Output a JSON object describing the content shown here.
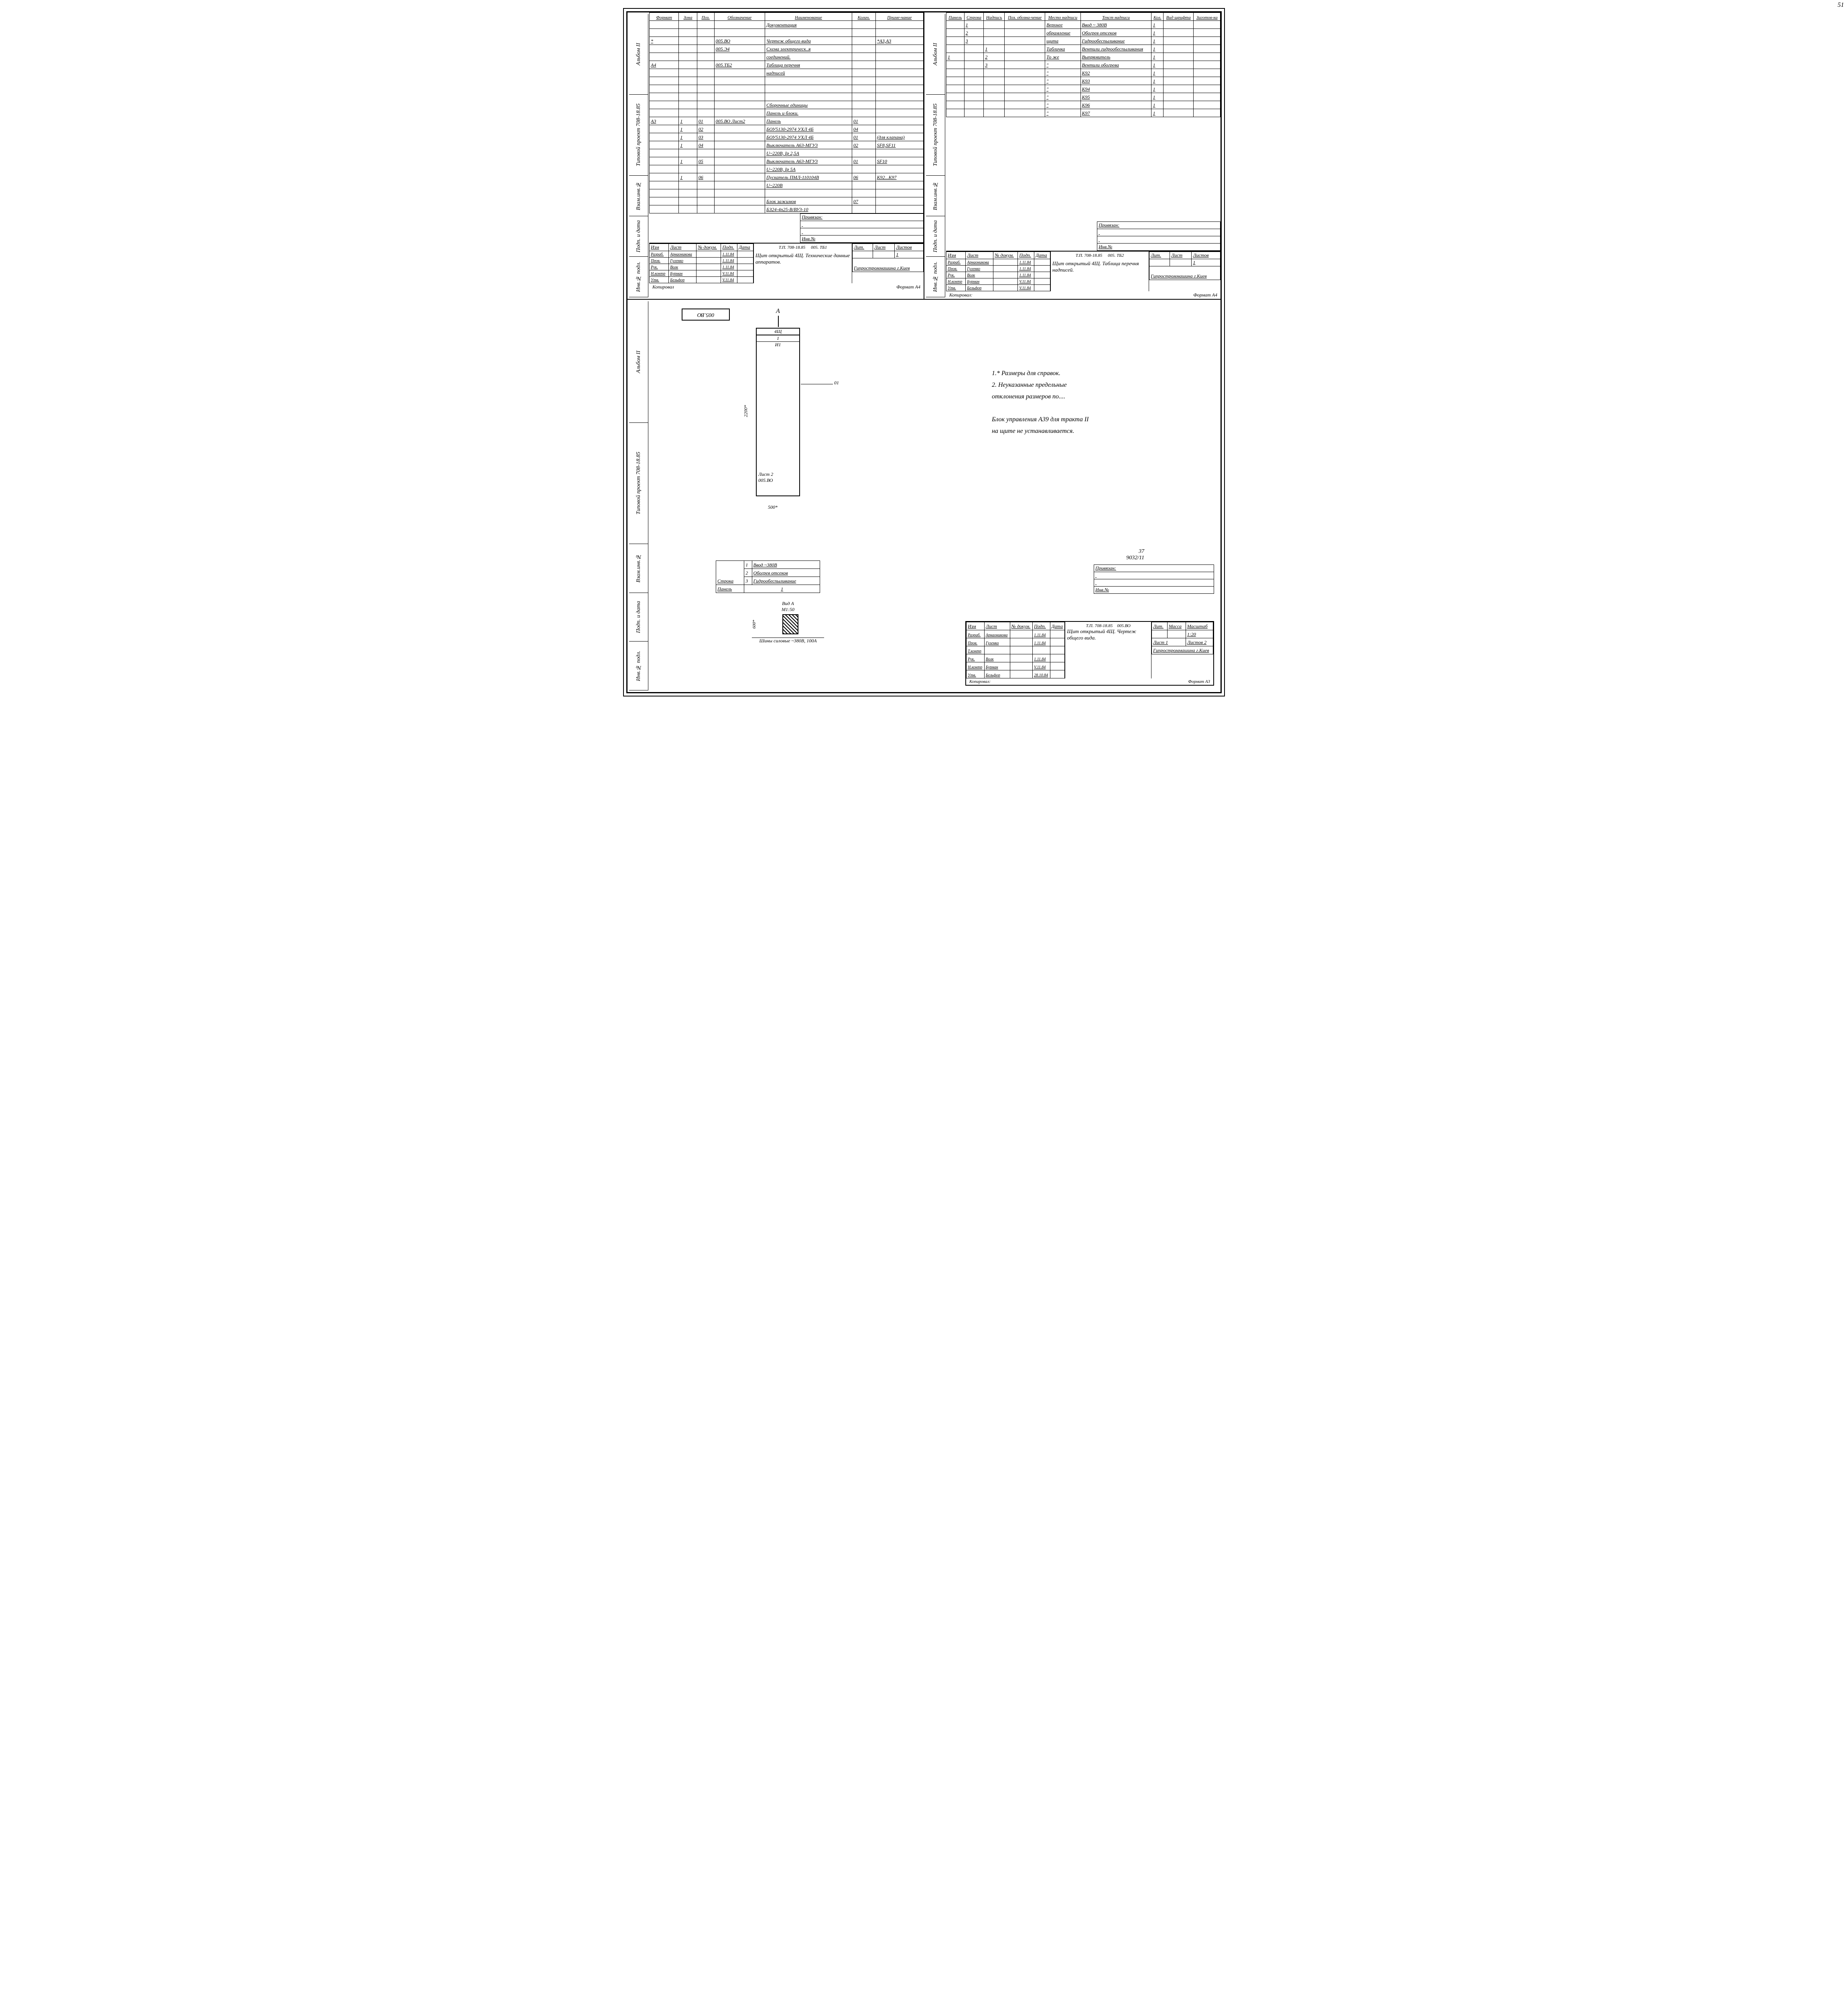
{
  "page_number": "51",
  "side": {
    "album": "Альбом II",
    "project": "Типовой проект 708-18.85",
    "strip": [
      "Инв.№ подл.",
      "Подп. и дата",
      "Взам.инв.№"
    ]
  },
  "table1": {
    "headers": [
      "Формат",
      "Зона",
      "Поз.",
      "Обозначение",
      "Наименование",
      "Колич.",
      "Приме-чание"
    ],
    "rows": [
      [
        "",
        "",
        "",
        "",
        "Документация",
        "",
        ""
      ],
      [
        "",
        "",
        "",
        "",
        "",
        "",
        ""
      ],
      [
        "*",
        "",
        "",
        "005.ВО",
        "Чертеж общего вида",
        "",
        "*А3,А3"
      ],
      [
        "",
        "",
        "",
        "005.Э4",
        "Схема электрическ..я",
        "",
        ""
      ],
      [
        "",
        "",
        "",
        "",
        "соединений.",
        "",
        ""
      ],
      [
        "А4",
        "",
        "",
        "005.ТБ2",
        "Таблица перечня",
        "",
        ""
      ],
      [
        "",
        "",
        "",
        "",
        "надписей",
        "",
        ""
      ],
      [
        "",
        "",
        "",
        "",
        "",
        "",
        ""
      ],
      [
        "",
        "",
        "",
        "",
        "",
        "",
        ""
      ],
      [
        "",
        "",
        "",
        "",
        "",
        "",
        ""
      ],
      [
        "",
        "",
        "",
        "",
        "Сборочные единицы",
        "",
        ""
      ],
      [
        "",
        "",
        "",
        "",
        "Панель и блоки.",
        "",
        ""
      ],
      [
        "А3",
        "1",
        "01",
        "005.ВО Лист2",
        "Панель",
        "01",
        ""
      ],
      [
        "",
        "1",
        "02",
        "",
        "БОУ5130-2974 УХЛ 4Б",
        "04",
        ""
      ],
      [
        "",
        "1",
        "03",
        "",
        "БОУ5130-2974 УХЛ 4Б",
        "01",
        "(для клапана)"
      ],
      [
        "",
        "1",
        "04",
        "",
        "Выключатель А63-МГУ3",
        "02",
        "SF8,SF11"
      ],
      [
        "",
        "",
        "",
        "",
        "U~220В, Iр 2,5А",
        "",
        ""
      ],
      [
        "",
        "1",
        "05",
        "",
        "Выключатель А63-МГУ3",
        "01",
        "SF10"
      ],
      [
        "",
        "",
        "",
        "",
        "U~220В, Iр 5А",
        "",
        ""
      ],
      [
        "",
        "1",
        "06",
        "",
        "Пускатель ПМЛ-110104В",
        "06",
        "К92...К97"
      ],
      [
        "",
        "",
        "",
        "",
        "U~220В",
        "",
        ""
      ],
      [
        "",
        "",
        "",
        "",
        "",
        "",
        ""
      ],
      [
        "",
        "",
        "",
        "",
        "Блок зажимов",
        "07",
        ""
      ],
      [
        "",
        "",
        "",
        "",
        "БЗ24-4п25-В/ВУ3-10",
        "",
        ""
      ]
    ]
  },
  "priv_label": "Привязан:",
  "inv_label": "Инв.№",
  "tb1": {
    "proj": "Т.П. 708-18.85",
    "code": "005. ТБ1",
    "title": "Щит открытый 4Щ. Технические данные аппаратов.",
    "org": "Гипростроммашина г.Киев",
    "roles": [
      [
        "Разраб.",
        "Арнаоникова",
        "",
        "1.11.84"
      ],
      [
        "Пров.",
        "Гуленко",
        "",
        "1.11.84"
      ],
      [
        "Рук.",
        "Волк",
        "",
        "1.11.84"
      ],
      [
        "Н.контр",
        "Бурман",
        "",
        "V.11.84"
      ],
      [
        "Утв.",
        "Бельфор",
        "",
        "V.11.84"
      ]
    ],
    "lit": "Лит.",
    "list": "Лист",
    "listov": "Листов",
    "listov_v": "1",
    "footer_l": "Копировал",
    "footer_r": "Формат А4",
    "hdr": [
      "Изм",
      "Лист",
      "№ докум.",
      "Подп.",
      "Дата"
    ]
  },
  "table2": {
    "headers": [
      "Панель",
      "Строка",
      "Надпись",
      "Поз. обозна-чение",
      "Место надписи",
      "Текст надписи",
      "Кол.",
      "Вид шрифта",
      "Заготов-ка"
    ],
    "rows": [
      [
        "",
        "1",
        "",
        "",
        "Верхнее",
        "Ввод ~ 380В",
        "1",
        "",
        ""
      ],
      [
        "",
        "2",
        "",
        "",
        "обрамление",
        "Обогрев отсеков",
        "1",
        "",
        ""
      ],
      [
        "",
        "3",
        "",
        "",
        "щита",
        "Гидрообеспыливание",
        "1",
        "",
        ""
      ],
      [
        "",
        "",
        "1",
        "",
        "Табличка",
        "Вентили гидрообеспыливания",
        "1",
        "",
        ""
      ],
      [
        "1",
        "",
        "2",
        "",
        "То же",
        "Выпрямитель",
        "1",
        "",
        ""
      ],
      [
        "",
        "",
        "3",
        "",
        "\"",
        "Вентили обогрева",
        "1",
        "",
        ""
      ],
      [
        "",
        "",
        "",
        "",
        "\"",
        "К92",
        "1",
        "",
        ""
      ],
      [
        "",
        "",
        "",
        "",
        "\"",
        "К93",
        "1",
        "",
        ""
      ],
      [
        "",
        "",
        "",
        "",
        "\"",
        "К94",
        "1",
        "",
        ""
      ],
      [
        "",
        "",
        "",
        "",
        "\"",
        "К95",
        "1",
        "",
        ""
      ],
      [
        "",
        "",
        "",
        "",
        "\"",
        "К96",
        "1",
        "",
        ""
      ],
      [
        "",
        "",
        "",
        "",
        "\"",
        "К97",
        "1",
        "",
        ""
      ]
    ]
  },
  "tb2": {
    "proj": "Т.П. 708-18.85",
    "code": "005. ТБ2",
    "title": "Щит открытый 4Щ. Таблица перечня надписей.",
    "org": "Гипростроммашина г.Киев",
    "footer_l": "Копировал:",
    "footer_r": "Формат А4"
  },
  "bottom": {
    "code_rot": "005.ВО",
    "panel_label_top": "4Щ",
    "panel_num": "1",
    "panel_h": "И1",
    "callout": "01",
    "leaf": "Лист 2",
    "leaf_code": "005.ВО",
    "dim_h": "2200*",
    "dim_w": "500*",
    "arrow": "А",
    "notes": [
      "1.* Размеры для справок.",
      "2. Неуказанные предельные",
      "   отклонения размеров по....",
      "",
      "Блок управления А39 для тракта II",
      "на щите не устанавливается."
    ],
    "stroka_tbl": {
      "r1": "Ввод ~380В",
      "r2": "Обогрев отсеков",
      "r3": "Гидрообеспыливание",
      "lbl_stroka": "Строка",
      "lbl_panel": "Панель",
      "panel_v": "1"
    },
    "vid": {
      "title": "Вид А",
      "scale": "М1:50",
      "dim": "600*",
      "caption": "Шины силовые ~380В, 100А"
    },
    "extra_num": "37",
    "extra_code": "9032/11",
    "tb": {
      "proj": "Т.П. 708-18.85",
      "code": "005.ВО",
      "title": "Щит открытый 4Щ. Чертеж общего вида.",
      "scale": "1:20",
      "list": "Лист 1",
      "listov": "Листов 2",
      "org": "Гипростроммашина г.Киев",
      "footer_l": "Копировал:",
      "footer_r": "Формат А3",
      "lit": "Лит.",
      "massa": "Масса",
      "masst": "Масштаб",
      "hdr": [
        "Изм",
        "Лист",
        "№ докум.",
        "Подп.",
        "Дата"
      ],
      "roles": [
        [
          "Разраб.",
          "Арнаоникова",
          "",
          "1.11.84"
        ],
        [
          "Пров.",
          "Гуленко",
          "",
          "1.11.84"
        ],
        [
          "Т.контр",
          "",
          "",
          ""
        ],
        [
          "Рук.",
          "Волк",
          "",
          "1.11.84"
        ],
        [
          "Н.контр",
          "Бурман",
          "",
          "V.11.84"
        ],
        [
          "Утв.",
          "Бельфор",
          "",
          "28.10.84"
        ]
      ]
    }
  }
}
